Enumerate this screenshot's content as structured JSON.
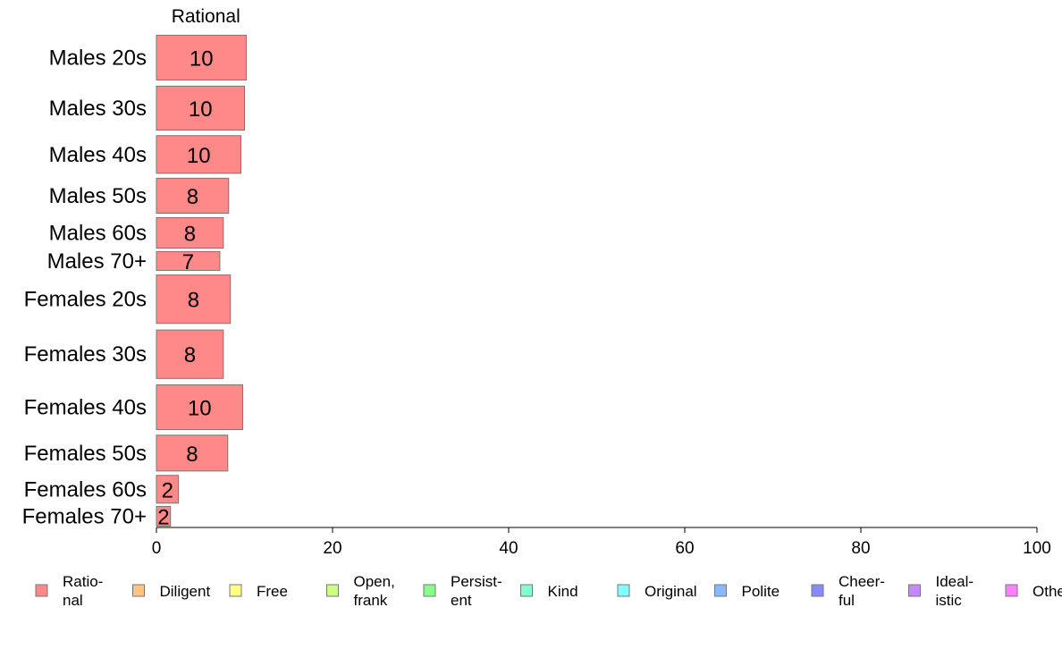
{
  "chart_data": {
    "type": "bar",
    "orientation": "horizontal",
    "stacked": true,
    "column_header": "Rational",
    "categories": [
      "Males 20s",
      "Males 30s",
      "Males 40s",
      "Males 50s",
      "Males 60s",
      "Males 70+",
      "Females 20s",
      "Females 30s",
      "Females 40s",
      "Females 50s",
      "Females 60s",
      "Females 70+"
    ],
    "series": [
      {
        "name": "Ratio-\nnal",
        "color": "#ff8888",
        "values": [
          10.2,
          10.0,
          9.6,
          8.2,
          7.6,
          7.2,
          8.4,
          7.6,
          9.8,
          8.1,
          2.5,
          1.6
        ],
        "labels": [
          "10",
          "10",
          "10",
          "8",
          "8",
          "7",
          "8",
          "8",
          "10",
          "8",
          "2",
          "2"
        ]
      }
    ],
    "row_weights": [
      5.0,
      4.9,
      4.2,
      3.9,
      3.4,
      2.1,
      5.4,
      5.4,
      5.0,
      4.0,
      3.1,
      2.2
    ],
    "xlim": [
      0,
      100
    ],
    "xticks": [
      "0",
      "20",
      "40",
      "60",
      "80",
      "100"
    ],
    "xtick_values": [
      0,
      20,
      40,
      60,
      80,
      100
    ],
    "grid": false,
    "legend": {
      "position": "bottom",
      "items": [
        {
          "label": "Ratio-\nnal",
          "color": "#ff8888"
        },
        {
          "label": "Diligent",
          "color": "#ffc480"
        },
        {
          "label": "Free",
          "color": "#ffff80"
        },
        {
          "label": "Open,\nfrank",
          "color": "#ccff80"
        },
        {
          "label": "Persist-\nent",
          "color": "#88ff88"
        },
        {
          "label": "Kind",
          "color": "#80ffcc"
        },
        {
          "label": "Original",
          "color": "#80ffff"
        },
        {
          "label": "Polite",
          "color": "#88b8ff"
        },
        {
          "label": "Cheer-\nful",
          "color": "#8888ff"
        },
        {
          "label": "Ideal-\nistic",
          "color": "#c488ff"
        },
        {
          "label": "Others",
          "color": "#ff80ff"
        }
      ]
    }
  }
}
